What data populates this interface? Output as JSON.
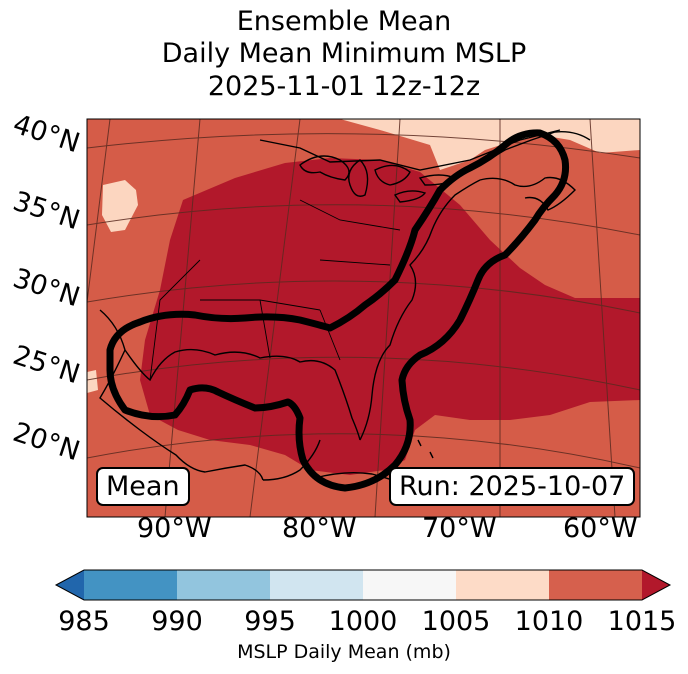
{
  "title": {
    "line1": "Ensemble Mean",
    "line2": "Daily Mean Minimum MSLP",
    "line3": "2025-11-01 12z-12z"
  },
  "lat_labels": [
    "40°N",
    "35°N",
    "30°N",
    "25°N",
    "20°N"
  ],
  "lon_labels": [
    "90°W",
    "80°W",
    "70°W",
    "60°W"
  ],
  "mean_box": "Mean",
  "run_box": "Run: 2025-10-07",
  "map_fill": {
    "1005_1010": "#fcd6c0",
    "1010_1015": "#d55c48",
    "1015_plus": "#b2182b"
  },
  "colorbar": {
    "label": "MSLP Daily Mean (mb)",
    "ticks": [
      "985",
      "990",
      "995",
      "1000",
      "1005",
      "1010",
      "1015"
    ],
    "colors": [
      "#2166ac",
      "#4393c3",
      "#92c5de",
      "#d1e5f0",
      "#f7f7f7",
      "#fddbc7",
      "#d6604d",
      "#b2182b"
    ]
  }
}
